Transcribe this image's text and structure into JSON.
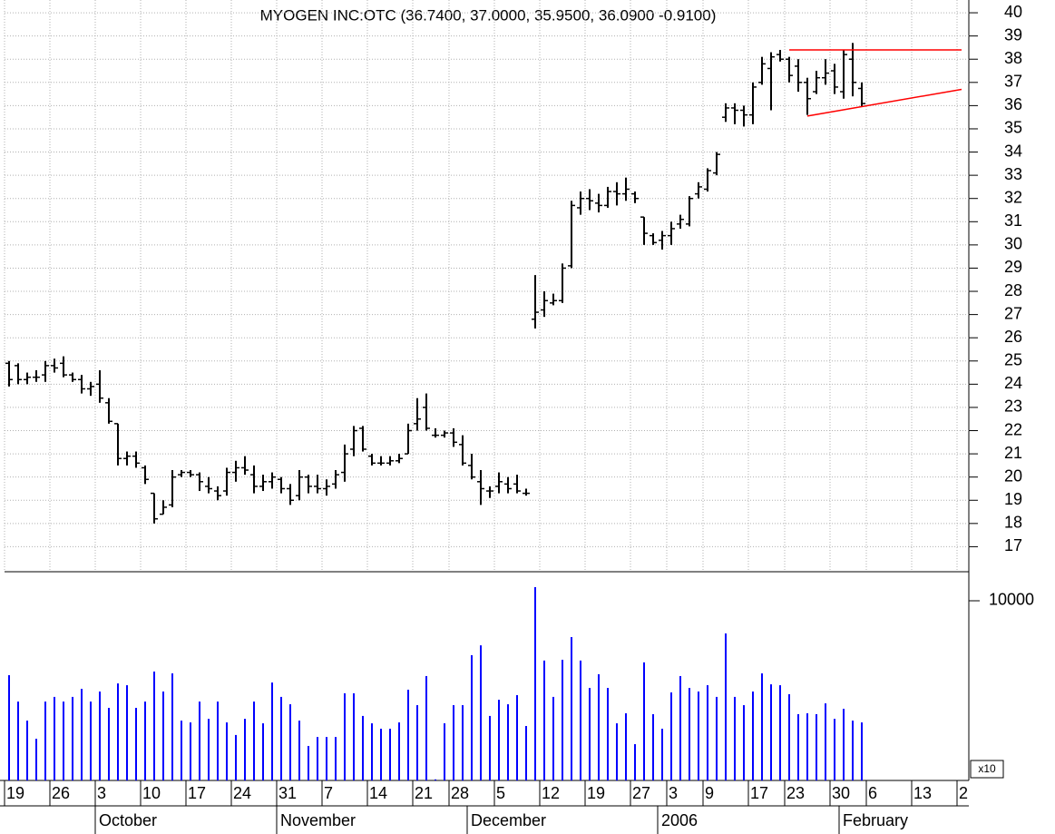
{
  "chart_data": {
    "type": "ohlc",
    "title": "MYOGEN INC:OTC (36.7400, 37.0000, 35.9500, 36.0900 -0.9100)",
    "open": [
      24.9,
      24.8,
      24.2,
      24.3,
      24.4,
      24.8,
      24.9,
      24.4,
      24.2,
      23.8,
      24.0,
      23.2,
      22.3,
      20.8,
      20.9,
      20.4,
      19.3,
      18.4,
      18.8,
      20.1,
      20.2,
      20.1,
      19.6,
      19.4,
      19.4,
      20.2,
      20.4,
      20.1,
      19.6,
      19.8,
      19.9,
      19.5,
      19.2,
      20.0,
      19.6,
      19.5,
      19.7,
      20.2,
      21.2,
      22.1,
      20.9,
      20.6,
      20.6,
      20.7,
      21.0,
      22.3,
      23.0,
      21.8,
      21.8,
      21.9,
      21.4,
      20.5,
      19.8,
      19.4,
      19.6,
      19.7,
      19.7,
      19.3,
      26.8,
      27.2,
      27.5,
      27.6,
      29.1,
      31.6,
      32.0,
      31.8,
      31.7,
      32.3,
      32.2,
      32.2,
      31.2,
      30.4,
      30.2,
      30.4,
      30.9,
      30.9,
      32.2,
      32.4,
      33.1,
      35.5,
      35.9,
      35.8,
      35.6,
      37.0,
      37.6,
      38.2,
      38.0,
      37.7,
      37.0,
      36.6,
      37.2,
      37.5,
      36.6,
      38.0,
      36.74
    ],
    "high": [
      25.0,
      24.9,
      24.5,
      24.6,
      25.0,
      25.1,
      25.2,
      24.5,
      24.4,
      24.1,
      24.6,
      23.4,
      22.3,
      21.1,
      21.1,
      20.5,
      19.3,
      19.0,
      20.3,
      20.3,
      20.3,
      20.2,
      20.0,
      19.6,
      20.4,
      20.7,
      20.9,
      20.5,
      20.1,
      20.2,
      20.0,
      19.7,
      20.3,
      20.1,
      20.1,
      19.9,
      20.3,
      21.4,
      22.2,
      22.2,
      21.0,
      20.9,
      20.9,
      21.0,
      22.3,
      23.4,
      23.6,
      22.1,
      22.0,
      22.1,
      21.8,
      21.0,
      20.3,
      19.6,
      20.2,
      20.0,
      20.1,
      19.5,
      28.7,
      28.0,
      27.9,
      29.2,
      31.9,
      32.3,
      32.4,
      32.2,
      32.5,
      32.7,
      32.9,
      32.3,
      31.2,
      30.5,
      30.6,
      31.0,
      31.3,
      32.1,
      32.7,
      33.3,
      34.0,
      36.1,
      36.1,
      36.0,
      37.0,
      38.1,
      38.3,
      38.4,
      38.1,
      38.0,
      37.2,
      37.5,
      38.0,
      37.8,
      38.4,
      38.7,
      37.0
    ],
    "low": [
      23.9,
      24.0,
      24.0,
      24.1,
      24.1,
      24.5,
      24.3,
      24.1,
      23.6,
      23.5,
      23.2,
      22.3,
      20.5,
      20.5,
      20.4,
      19.7,
      18.0,
      18.4,
      18.7,
      20.0,
      20.0,
      19.4,
      19.3,
      19.0,
      19.2,
      19.8,
      20.1,
      19.3,
      19.4,
      19.5,
      19.3,
      18.8,
      19.0,
      19.3,
      19.3,
      19.2,
      19.5,
      19.8,
      20.9,
      21.1,
      20.5,
      20.5,
      20.5,
      20.6,
      21.0,
      22.0,
      22.0,
      21.7,
      21.7,
      21.3,
      20.5,
      19.9,
      18.8,
      19.1,
      19.3,
      19.3,
      19.3,
      19.2,
      26.4,
      26.9,
      27.4,
      27.5,
      29.0,
      31.3,
      31.5,
      31.4,
      31.6,
      31.7,
      31.9,
      31.8,
      30.0,
      30.0,
      29.8,
      30.0,
      30.7,
      30.8,
      32.0,
      32.3,
      33.0,
      35.3,
      35.2,
      35.1,
      35.2,
      36.9,
      35.8,
      37.9,
      37.0,
      36.6,
      35.6,
      36.5,
      36.9,
      36.5,
      36.3,
      36.4,
      35.95
    ],
    "close": [
      24.2,
      24.2,
      24.3,
      24.3,
      24.8,
      24.7,
      24.4,
      24.2,
      23.8,
      23.9,
      23.4,
      22.4,
      20.8,
      20.9,
      20.6,
      19.9,
      18.2,
      18.7,
      20.0,
      20.2,
      20.1,
      19.8,
      19.5,
      19.2,
      20.2,
      20.4,
      20.3,
      19.6,
      19.8,
      20.0,
      19.5,
      19.0,
      20.0,
      19.6,
      19.5,
      19.6,
      20.1,
      21.0,
      22.0,
      21.2,
      20.6,
      20.6,
      20.7,
      20.8,
      22.0,
      22.5,
      22.1,
      21.8,
      21.9,
      21.5,
      20.6,
      20.0,
      19.5,
      19.4,
      19.8,
      19.5,
      19.4,
      19.3,
      27.1,
      27.6,
      27.6,
      29.0,
      31.7,
      32.0,
      31.9,
      31.7,
      32.3,
      32.2,
      32.4,
      32.0,
      30.5,
      30.1,
      30.4,
      30.7,
      31.1,
      32.0,
      32.5,
      33.2,
      33.9,
      35.9,
      35.8,
      35.6,
      36.8,
      37.8,
      38.1,
      38.0,
      37.3,
      37.0,
      36.3,
      37.2,
      37.4,
      36.8,
      38.2,
      37.0,
      36.09
    ],
    "volume": [
      5860,
      4390,
      3330,
      2320,
      4390,
      4650,
      4390,
      4650,
      5100,
      4390,
      4950,
      4040,
      5400,
      5300,
      4040,
      4390,
      6060,
      4950,
      5960,
      3330,
      3230,
      4390,
      3430,
      4390,
      3230,
      2530,
      3430,
      4390,
      3180,
      5450,
      4650,
      4240,
      3330,
      1920,
      2420,
      2420,
      2420,
      4850,
      4850,
      3590,
      3180,
      2880,
      2880,
      3230,
      5050,
      4190,
      5810,
      60,
      3180,
      4190,
      4190,
      6970,
      7520,
      3590,
      4490,
      4240,
      4750,
      3030,
      10760,
      6670,
      4650,
      6720,
      7980,
      6670,
      5150,
      5910,
      5150,
      3180,
      3740,
      2020,
      6570,
      3690,
      2880,
      4900,
      5810,
      5150,
      4950,
      5300,
      4650,
      8180,
      4650,
      4190,
      4950,
      5960,
      5350,
      5300,
      4800,
      3690,
      3740,
      3690,
      4290,
      3430,
      3990,
      3330,
      3230
    ],
    "bar_color": "#000000",
    "volume_color": "#0000ff",
    "trendlines": [
      {
        "color": "#ff0000",
        "x": [
          86,
          105
        ],
        "y": [
          38.4,
          38.4
        ]
      },
      {
        "color": "#ff0000",
        "x": [
          88,
          105
        ],
        "y": [
          35.55,
          36.7
        ]
      }
    ],
    "xlim": [
      -0.5,
      105.8
    ],
    "xticks": [
      {
        "value": 0,
        "label": "19"
      },
      {
        "value": 5,
        "label": "26"
      },
      {
        "value": 10,
        "label": "3"
      },
      {
        "value": 15,
        "label": "10"
      },
      {
        "value": 20,
        "label": "17"
      },
      {
        "value": 25,
        "label": "24"
      },
      {
        "value": 30,
        "label": "31"
      },
      {
        "value": 35,
        "label": "7"
      },
      {
        "value": 40,
        "label": "14"
      },
      {
        "value": 45,
        "label": "21"
      },
      {
        "value": 49,
        "label": "28"
      },
      {
        "value": 54,
        "label": "5"
      },
      {
        "value": 59,
        "label": "12"
      },
      {
        "value": 64,
        "label": "19"
      },
      {
        "value": 69,
        "label": "27"
      },
      {
        "value": 73,
        "label": "3"
      },
      {
        "value": 77,
        "label": "9"
      },
      {
        "value": 82,
        "label": "17"
      },
      {
        "value": 86,
        "label": "23"
      },
      {
        "value": 91,
        "label": "30"
      },
      {
        "value": 95,
        "label": "6"
      },
      {
        "value": 100,
        "label": "13"
      },
      {
        "value": 105,
        "label": "2"
      }
    ],
    "month_ticks": [
      {
        "value": 10,
        "label": "October"
      },
      {
        "value": 30,
        "label": "November"
      },
      {
        "value": 51,
        "label": "December"
      },
      {
        "value": 72,
        "label": "2006"
      },
      {
        "value": 92,
        "label": "February"
      }
    ],
    "ylim": [
      16,
      40.55
    ],
    "yticks": [
      17,
      18,
      19,
      20,
      21,
      22,
      23,
      24,
      25,
      26,
      27,
      28,
      29,
      30,
      31,
      32,
      33,
      34,
      35,
      36,
      37,
      38,
      39,
      40
    ],
    "y2lim": [
      0,
      11616
    ],
    "y2ticks": [
      10000
    ],
    "volume_unit": "x10",
    "grid": true
  }
}
